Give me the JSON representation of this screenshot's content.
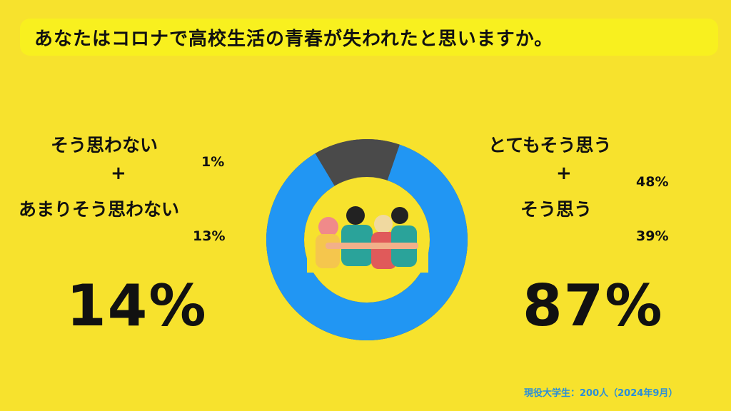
{
  "title": "あなたはコロナで高校生活の青春が失われたと思いますか。",
  "left": {
    "line1": "そう思わない",
    "plus": "+",
    "line2": "あまりそう思わない",
    "pct1": "1%",
    "pct2": "13%",
    "total": "14%"
  },
  "right": {
    "line1": "とてもそう思う",
    "plus": "+",
    "line2": "そう思う",
    "pct1": "48%",
    "pct2": "39%",
    "total": "87%"
  },
  "source": "現役大学生：200人（2024年9月）",
  "colors": {
    "background": "#f7e22d",
    "title_bar": "#f8f01f",
    "agree": "#2196f3",
    "disagree": "#4a4a4a",
    "source_text": "#2b8fd8"
  },
  "chart_data": {
    "type": "pie",
    "donut": true,
    "categories": [
      "そう思う（合計）",
      "そう思わない（合計）"
    ],
    "values": [
      87,
      14
    ],
    "colors": [
      "#2196f3",
      "#4a4a4a"
    ]
  }
}
